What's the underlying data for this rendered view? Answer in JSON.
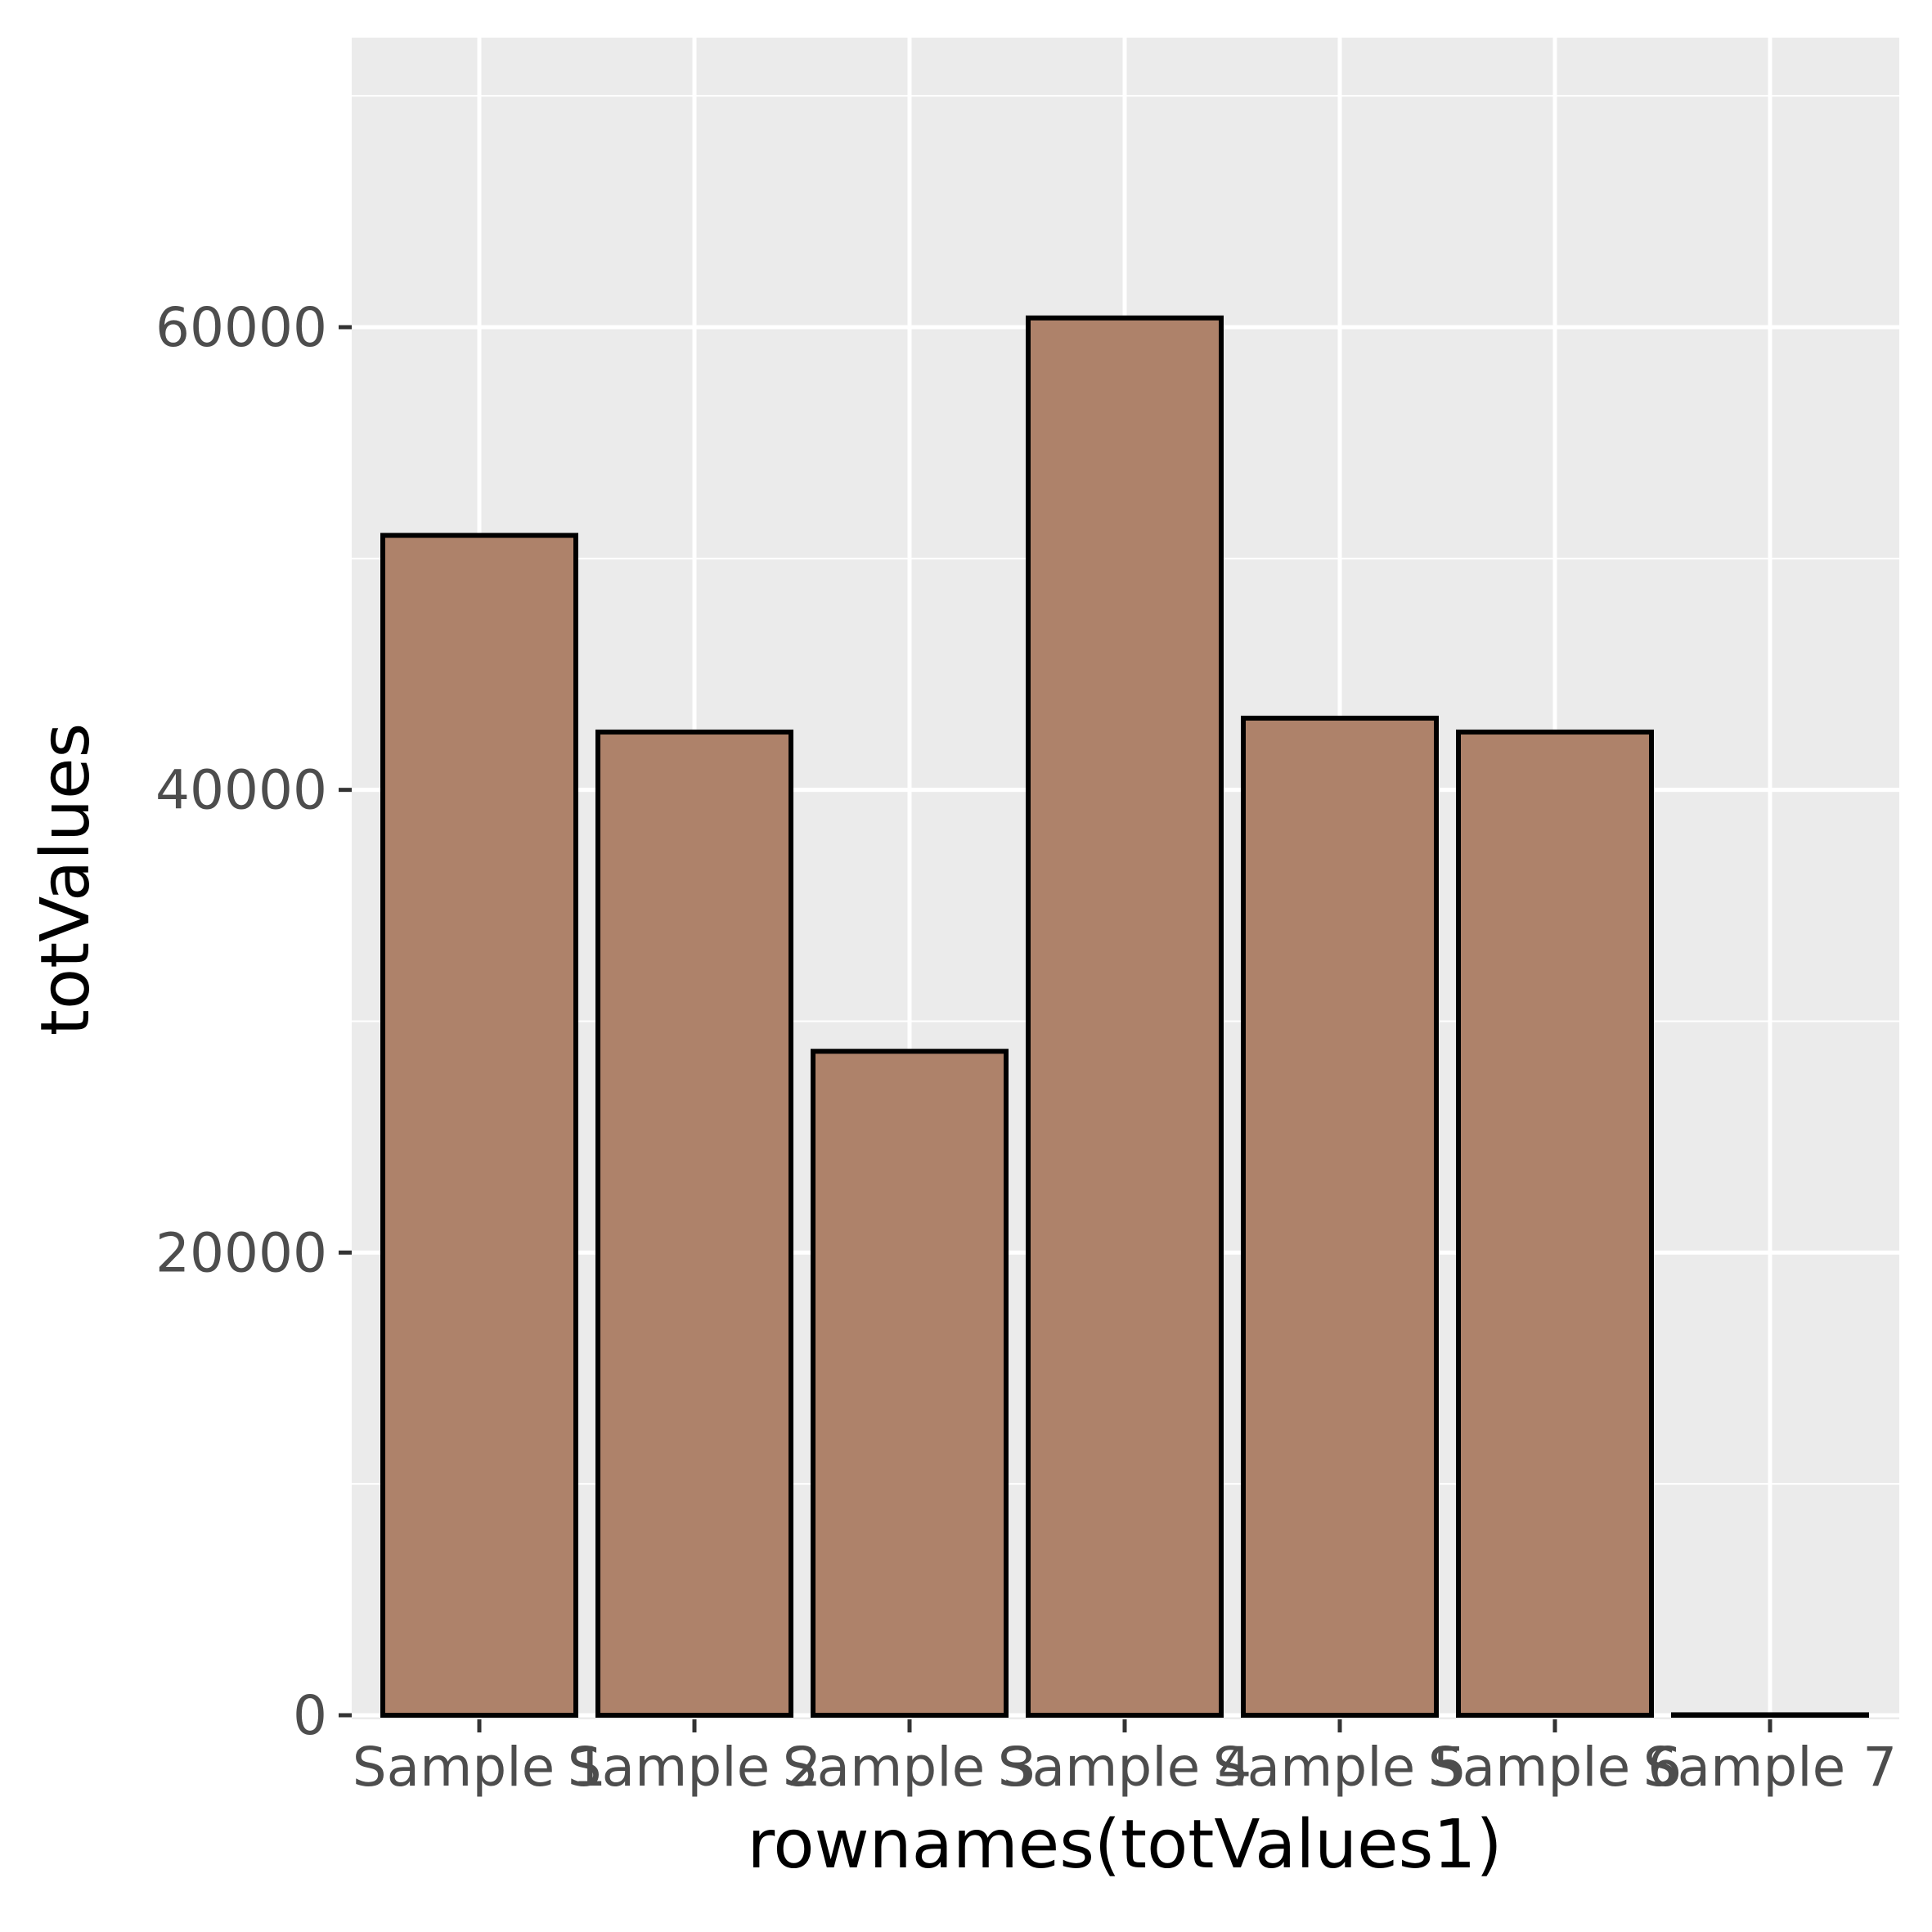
{
  "chart_data": {
    "type": "bar",
    "title": "",
    "xlabel": "rownames(totValues1)",
    "ylabel": "totValues",
    "categories": [
      "Sample 1",
      "Sample 2",
      "Sample 3",
      "Sample 4",
      "Sample 5",
      "Sample 6",
      "Sample 7"
    ],
    "values": [
      51000,
      42500,
      28700,
      60400,
      43100,
      42500,
      20
    ],
    "ylim": [
      0,
      72500
    ],
    "yticks": [
      0,
      20000,
      40000,
      60000
    ],
    "ytick_labels": [
      "0",
      "20000",
      "40000",
      "60000"
    ],
    "grid": true,
    "legend": "none",
    "colors": {
      "bar_fill": "#ae826a",
      "bar_stroke": "#000000",
      "panel_background": "#ebebeb",
      "grid": "#ffffff",
      "tick_text": "#4d4d4d",
      "axis_title": "#000000"
    }
  }
}
